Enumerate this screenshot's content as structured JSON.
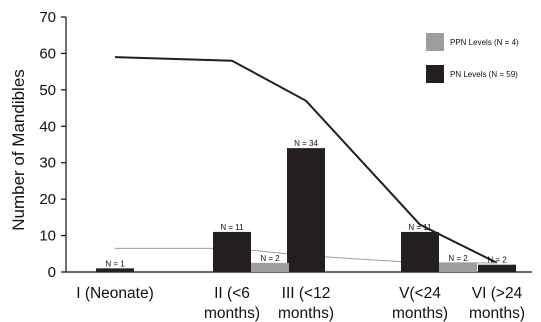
{
  "chart_data": {
    "type": "bar",
    "ylabel": "Number of Mandibles",
    "xlabel": "",
    "ylim": [
      0,
      70
    ],
    "yticks": [
      0,
      10,
      20,
      30,
      40,
      50,
      60,
      70
    ],
    "grid": false,
    "legend_position": "top-right",
    "categories": [
      {
        "line1": "I (Neonate)",
        "line2": ""
      },
      {
        "line1": "II (<6",
        "line2": "months)"
      },
      {
        "line1": "III (<12",
        "line2": "months)"
      },
      {
        "line1": "V(<24",
        "line2": "months)"
      },
      {
        "line1": "VI (>24",
        "line2": "months)"
      }
    ],
    "series": [
      {
        "name": "PN Levels (N = 59)",
        "color": "#231f20",
        "values": [
          1,
          11,
          34,
          11,
          2
        ],
        "labels": [
          "N = 1",
          "N = 11",
          "N = 34",
          "N = 11",
          "N = 2"
        ]
      },
      {
        "name": "PPN Levels (N = 4)",
        "color": "#9d9d9d",
        "values": [
          0,
          2.5,
          0,
          2.5,
          0
        ],
        "labels": [
          "",
          "N = 2",
          "",
          "N = 2",
          ""
        ]
      }
    ],
    "lines": [
      {
        "color": "#231f20",
        "values": [
          59,
          58,
          47,
          13,
          2.5
        ]
      },
      {
        "color": "#9d9d9d",
        "values": [
          6.5,
          6.5,
          4.5,
          2.5,
          2.5
        ]
      }
    ]
  }
}
